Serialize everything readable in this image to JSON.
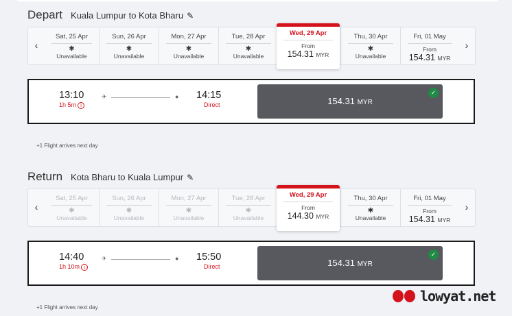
{
  "depart": {
    "label": "Depart",
    "route": "Kuala Lumpur to Kota Bharu",
    "dates": [
      {
        "date": "Sat, 25 Apr",
        "status": "Unavailable",
        "disabled": false
      },
      {
        "date": "Sun, 26 Apr",
        "status": "Unavailable",
        "disabled": false
      },
      {
        "date": "Mon, 27 Apr",
        "status": "Unavailable",
        "disabled": false
      },
      {
        "date": "Tue, 28 Apr",
        "status": "Unavailable",
        "disabled": false
      },
      {
        "date": "Wed, 29 Apr",
        "from": "From",
        "price": "154.31",
        "currency": "MYR",
        "selected": true
      },
      {
        "date": "Thu, 30 Apr",
        "status": "Unavailable",
        "disabled": false
      },
      {
        "date": "Fri, 01 May",
        "from": "From",
        "price": "154.31",
        "currency": "MYR"
      }
    ],
    "flight": {
      "dep": "13:10",
      "duration": "1h 5m",
      "arr": "14:15",
      "stops": "Direct",
      "price": "154.31",
      "currency": "MYR"
    },
    "note": "+1 Flight arrives next day"
  },
  "return": {
    "label": "Return",
    "route": "Kota Bharu to Kuala Lumpur",
    "dates": [
      {
        "date": "Sat, 25 Apr",
        "status": "Unavailable",
        "disabled": true
      },
      {
        "date": "Sun, 26 Apr",
        "status": "Unavailable",
        "disabled": true
      },
      {
        "date": "Mon, 27 Apr",
        "status": "Unavailable",
        "disabled": true
      },
      {
        "date": "Tue, 28 Apr",
        "status": "Unavailable",
        "disabled": true
      },
      {
        "date": "Wed, 29 Apr",
        "from": "From",
        "price": "144.30",
        "currency": "MYR",
        "selected": true
      },
      {
        "date": "Thu, 30 Apr",
        "status": "Unavailable",
        "disabled": false
      },
      {
        "date": "Fri, 01 May",
        "from": "From",
        "price": "154.31",
        "currency": "MYR"
      }
    ],
    "flight": {
      "dep": "14:40",
      "duration": "1h 10m",
      "arr": "15:50",
      "stops": "Direct",
      "price": "154.31",
      "currency": "MYR"
    },
    "note": "+1 Flight arrives next day"
  },
  "watermark": "lowyat.net",
  "colors": {
    "accent": "#d4121b",
    "price_button": "#58595e",
    "check": "#1f8a45"
  }
}
